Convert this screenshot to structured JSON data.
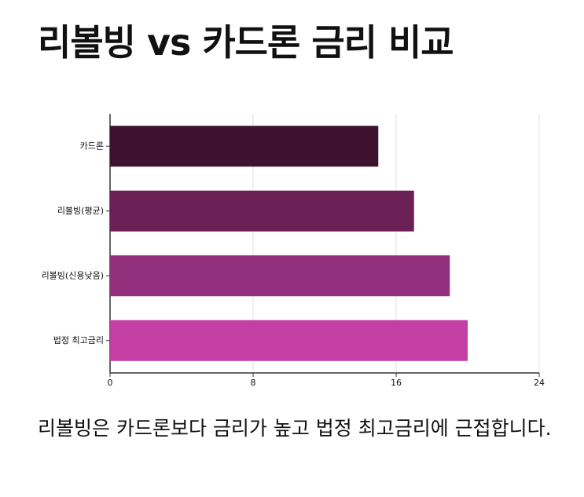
{
  "chart_data": {
    "type": "bar",
    "orientation": "horizontal",
    "title": "리볼빙 vs 카드론 금리 비교",
    "description": "리볼빙은 카드론보다 금리가 높고 법정 최고금리에 근접합니다.",
    "categories": [
      "카드론",
      "리볼빙(평균)",
      "리볼빙(신용낮음)",
      "법정 최고금리"
    ],
    "values": [
      15,
      17,
      19,
      20
    ],
    "colors": [
      "#3d1230",
      "#6a1f55",
      "#93307d",
      "#c43fa3"
    ],
    "xlim": [
      0,
      24
    ],
    "xticks": [
      0,
      8,
      16,
      24
    ],
    "grid": true
  }
}
